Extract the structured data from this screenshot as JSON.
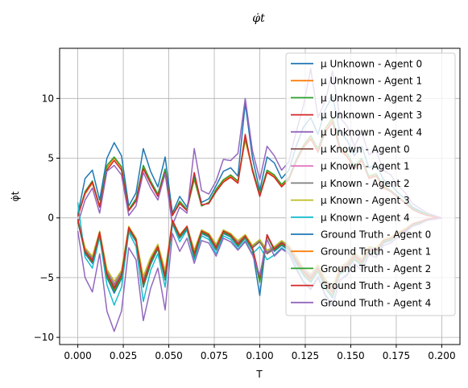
{
  "chart_data": {
    "type": "line",
    "title": "φ̇t",
    "xlabel": "T",
    "ylabel": "φ̇t",
    "xlim": [
      -0.01,
      0.21
    ],
    "ylim": [
      -10.6,
      14.2
    ],
    "xticks": [
      "0.000",
      "0.025",
      "0.050",
      "0.075",
      "0.100",
      "0.125",
      "0.150",
      "0.175",
      "0.200"
    ],
    "xtick_values": [
      0,
      0.025,
      0.05,
      0.075,
      0.1,
      0.125,
      0.15,
      0.175,
      0.2
    ],
    "yticks": [
      "−10",
      "−5",
      "0",
      "5",
      "10"
    ],
    "ytick_values": [
      -10,
      -5,
      0,
      5,
      10
    ],
    "grid": true,
    "legend_position": "top-right",
    "x": [
      0.0,
      0.004,
      0.008,
      0.012,
      0.016,
      0.02,
      0.024,
      0.028,
      0.032,
      0.036,
      0.04,
      0.044,
      0.048,
      0.052,
      0.056,
      0.06,
      0.064,
      0.068,
      0.072,
      0.076,
      0.08,
      0.084,
      0.088,
      0.092,
      0.096,
      0.1,
      0.104,
      0.108,
      0.112,
      0.116,
      0.12,
      0.124,
      0.128,
      0.132,
      0.136,
      0.14,
      0.144,
      0.148,
      0.152,
      0.156,
      0.16,
      0.164,
      0.168,
      0.172,
      0.176,
      0.18,
      0.184,
      0.188,
      0.192,
      0.196,
      0.2
    ],
    "series": [
      {
        "name": "μ Unknown - Agent 0",
        "color": "#1f77b4",
        "values": [
          0.3,
          3.3,
          4.0,
          1.5,
          5.0,
          6.3,
          5.2,
          1.0,
          2.1,
          5.8,
          3.9,
          2.6,
          5.1,
          0.4,
          1.8,
          0.9,
          3.5,
          1.3,
          1.6,
          2.7,
          3.9,
          4.2,
          3.5,
          9.6,
          5.0,
          2.3,
          5.1,
          4.6,
          3.3,
          4.0,
          6.0,
          7.6,
          8.4,
          7.0,
          9.1,
          10.2,
          7.2,
          6.5,
          5.2,
          6.0,
          4.2,
          4.5,
          3.2,
          2.8,
          2.1,
          1.6,
          0.9,
          0.6,
          0.3,
          0.1,
          0.0
        ]
      },
      {
        "name": "μ Unknown - Agent 1",
        "color": "#ff7f0e",
        "values": [
          0.2,
          2.0,
          2.9,
          0.9,
          4.2,
          5.0,
          4.2,
          0.6,
          1.5,
          4.3,
          3.0,
          1.9,
          4.0,
          0.2,
          1.3,
          0.7,
          3.2,
          1.0,
          1.3,
          2.3,
          3.1,
          3.5,
          3.0,
          6.5,
          4.0,
          1.9,
          3.9,
          3.5,
          2.7,
          3.3,
          4.8,
          6.0,
          6.7,
          5.6,
          7.3,
          8.2,
          5.8,
          5.2,
          4.2,
          4.9,
          3.4,
          3.6,
          2.6,
          2.3,
          1.7,
          1.3,
          0.7,
          0.5,
          0.2,
          0.1,
          0.0
        ]
      },
      {
        "name": "μ Unknown - Agent 2",
        "color": "#2ca02c",
        "values": [
          0.2,
          2.2,
          3.1,
          1.0,
          4.4,
          5.1,
          4.3,
          0.7,
          1.6,
          4.4,
          3.1,
          2.0,
          4.1,
          0.2,
          1.4,
          0.7,
          3.3,
          1.0,
          1.3,
          2.4,
          3.2,
          3.6,
          3.1,
          6.7,
          4.1,
          2.0,
          4.0,
          3.6,
          2.8,
          3.4,
          4.9,
          6.1,
          6.9,
          5.8,
          7.5,
          8.4,
          6.0,
          5.4,
          4.3,
          5.0,
          3.5,
          3.7,
          2.7,
          2.3,
          1.8,
          1.3,
          0.8,
          0.5,
          0.3,
          0.1,
          0.0
        ]
      },
      {
        "name": "μ Unknown - Agent 3",
        "color": "#d62728",
        "values": [
          0.1,
          2.1,
          3.0,
          0.9,
          4.0,
          4.8,
          4.0,
          0.6,
          1.4,
          4.1,
          2.9,
          1.8,
          3.8,
          0.2,
          1.2,
          0.6,
          3.8,
          1.1,
          1.2,
          2.2,
          3.0,
          3.4,
          2.9,
          7.0,
          3.9,
          1.8,
          3.8,
          3.4,
          2.6,
          3.2,
          4.7,
          5.9,
          6.6,
          5.5,
          7.2,
          8.0,
          5.7,
          5.1,
          4.1,
          4.8,
          3.3,
          3.5,
          2.5,
          2.2,
          1.7,
          1.2,
          0.7,
          0.4,
          0.2,
          0.1,
          0.0
        ]
      },
      {
        "name": "μ Unknown - Agent 4",
        "color": "#9467bd",
        "values": [
          -0.5,
          1.5,
          2.5,
          0.4,
          3.9,
          4.4,
          3.6,
          0.2,
          1.0,
          3.8,
          2.5,
          1.5,
          3.7,
          -0.6,
          0.9,
          0.4,
          5.8,
          2.3,
          2.0,
          3.1,
          4.9,
          4.8,
          5.4,
          10.0,
          5.6,
          3.2,
          6.0,
          5.2,
          4.0,
          4.7,
          7.2,
          9.4,
          12.5,
          8.4,
          9.8,
          12.3,
          8.4,
          7.7,
          6.0,
          7.2,
          5.3,
          5.6,
          4.0,
          3.6,
          2.7,
          2.1,
          1.2,
          0.8,
          0.4,
          0.2,
          0.0
        ]
      },
      {
        "name": "μ Known - Agent 0",
        "color": "#8c564b",
        "values": [
          -0.3,
          -2.8,
          -3.5,
          -1.3,
          -4.7,
          -5.8,
          -4.8,
          -0.9,
          -1.9,
          -5.4,
          -3.6,
          -2.4,
          -4.8,
          -0.3,
          -1.6,
          -0.8,
          -3.0,
          -1.2,
          -1.5,
          -2.5,
          -1.2,
          -1.5,
          -2.2,
          -1.6,
          -2.5,
          -2.0,
          -3.0,
          -2.6,
          -2.1,
          -2.5,
          -3.5,
          -4.5,
          -5.0,
          -4.2,
          -5.5,
          -6.2,
          -4.4,
          -4.0,
          -3.2,
          -3.7,
          -2.6,
          -2.8,
          -2.0,
          -1.8,
          -1.3,
          -1.0,
          -0.6,
          -0.4,
          -0.2,
          -0.1,
          0.0
        ]
      },
      {
        "name": "μ Known - Agent 1",
        "color": "#e377c2",
        "values": [
          -0.2,
          -2.6,
          -3.3,
          -1.2,
          -4.4,
          -5.5,
          -4.5,
          -0.8,
          -1.8,
          -5.1,
          -3.4,
          -2.3,
          -4.5,
          -0.3,
          -1.5,
          -0.7,
          -2.8,
          -1.1,
          -1.4,
          -2.3,
          -1.1,
          -1.4,
          -2.0,
          -1.5,
          -2.4,
          -1.9,
          -2.8,
          -2.5,
          -2.0,
          -2.4,
          -3.3,
          -4.3,
          -4.8,
          -4.0,
          -5.2,
          -5.9,
          -4.2,
          -3.8,
          -3.0,
          -3.5,
          -2.5,
          -2.6,
          -1.9,
          -1.7,
          -1.2,
          -0.9,
          -0.5,
          -0.3,
          -0.2,
          -0.1,
          0.0
        ]
      },
      {
        "name": "μ Known - Agent 2",
        "color": "#7f7f7f",
        "values": [
          -0.2,
          -2.7,
          -3.4,
          -1.2,
          -4.5,
          -5.6,
          -4.6,
          -0.8,
          -1.8,
          -5.2,
          -3.5,
          -2.3,
          -4.6,
          -0.3,
          -1.5,
          -0.8,
          -2.9,
          -1.1,
          -1.4,
          -2.4,
          -1.1,
          -1.4,
          -2.1,
          -1.5,
          -2.4,
          -1.9,
          -2.9,
          -2.5,
          -2.0,
          -2.4,
          -3.4,
          -4.4,
          -4.9,
          -4.1,
          -5.3,
          -6.0,
          -4.3,
          -3.9,
          -3.1,
          -3.6,
          -2.5,
          -2.7,
          -1.9,
          -1.7,
          -1.3,
          -0.9,
          -0.6,
          -0.4,
          -0.2,
          -0.1,
          0.0
        ]
      },
      {
        "name": "μ Known - Agent 3",
        "color": "#bcbd22",
        "values": [
          -0.1,
          -2.5,
          -3.2,
          -1.1,
          -4.3,
          -5.3,
          -4.4,
          -0.7,
          -1.7,
          -4.9,
          -3.3,
          -2.2,
          -4.4,
          -0.2,
          -1.4,
          -0.7,
          -2.7,
          -1.0,
          -1.3,
          -2.2,
          -1.0,
          -1.3,
          -1.9,
          -1.4,
          -2.3,
          -1.8,
          -2.7,
          -2.4,
          -1.9,
          -2.3,
          -3.2,
          -4.2,
          -4.7,
          -3.9,
          -5.1,
          -5.8,
          -4.1,
          -3.7,
          -2.9,
          -3.4,
          -2.4,
          -2.5,
          -1.8,
          -1.6,
          -1.2,
          -0.9,
          -0.5,
          -0.3,
          -0.1,
          0.0,
          0.0
        ]
      },
      {
        "name": "μ Known - Agent 4",
        "color": "#17becf",
        "values": [
          1.3,
          -3.3,
          -4.2,
          -1.6,
          -5.6,
          -7.3,
          -5.8,
          -1.2,
          -2.4,
          -7.0,
          -4.4,
          -3.0,
          -5.8,
          -0.5,
          -2.0,
          -1.0,
          -3.5,
          -1.5,
          -1.8,
          -3.0,
          -1.5,
          -1.8,
          -2.6,
          -1.9,
          -3.0,
          -2.4,
          -3.5,
          -3.1,
          -2.5,
          -2.9,
          -4.1,
          -5.3,
          -5.9,
          -4.9,
          -6.4,
          -7.3,
          -5.2,
          -4.7,
          -3.8,
          -4.4,
          -3.1,
          -3.3,
          -2.3,
          -2.1,
          -1.6,
          -1.2,
          -0.7,
          -0.5,
          -0.2,
          -0.1,
          0.0
        ]
      },
      {
        "name": "Ground Truth - Agent 0",
        "color": "#1f77b4",
        "values": [
          -0.3,
          -3.0,
          -3.8,
          -1.4,
          -5.0,
          -6.3,
          -5.1,
          -1.0,
          -2.0,
          -5.8,
          -3.9,
          -2.6,
          -5.2,
          -0.4,
          -1.7,
          -0.9,
          -3.3,
          -1.3,
          -1.6,
          -2.7,
          -1.3,
          -1.6,
          -2.4,
          -1.7,
          -2.7,
          -6.5,
          -1.4,
          -2.8,
          -2.3,
          -2.7,
          -3.8,
          -4.8,
          -5.4,
          -4.5,
          -5.9,
          -6.7,
          -4.7,
          -4.3,
          -3.5,
          -4.0,
          -2.8,
          -3.0,
          -2.1,
          -1.9,
          -1.4,
          -1.1,
          -0.6,
          -0.4,
          -0.2,
          -0.1,
          0.0
        ]
      },
      {
        "name": "Ground Truth - Agent 1",
        "color": "#ff7f0e",
        "values": [
          -0.2,
          -2.9,
          -3.6,
          -1.3,
          -4.8,
          -6.0,
          -4.9,
          -0.9,
          -1.9,
          -5.6,
          -3.7,
          -2.5,
          -5.0,
          -0.3,
          -1.6,
          -0.8,
          -3.1,
          -1.2,
          -1.5,
          -2.6,
          -1.2,
          -1.5,
          -2.3,
          -1.6,
          -2.6,
          -5.2,
          -1.5,
          -2.7,
          -2.2,
          -2.6,
          -3.7,
          -4.6,
          -5.2,
          -4.3,
          -5.7,
          -6.4,
          -4.5,
          -4.1,
          -3.3,
          -3.8,
          -2.7,
          -2.9,
          -2.0,
          -1.8,
          -1.4,
          -1.0,
          -0.6,
          -0.4,
          -0.2,
          -0.1,
          0.0
        ]
      },
      {
        "name": "Ground Truth - Agent 2",
        "color": "#2ca02c",
        "values": [
          -0.2,
          -2.9,
          -3.7,
          -1.3,
          -4.9,
          -6.1,
          -5.0,
          -0.9,
          -1.9,
          -5.7,
          -3.8,
          -2.5,
          -5.1,
          -0.3,
          -1.6,
          -0.8,
          -3.2,
          -1.2,
          -1.5,
          -2.6,
          -1.2,
          -1.5,
          -2.3,
          -1.6,
          -2.6,
          -5.4,
          -1.5,
          -2.7,
          -2.2,
          -2.6,
          -3.7,
          -4.7,
          -5.3,
          -4.4,
          -5.8,
          -6.5,
          -4.6,
          -4.2,
          -3.4,
          -3.9,
          -2.7,
          -2.9,
          -2.0,
          -1.8,
          -1.4,
          -1.0,
          -0.6,
          -0.4,
          -0.2,
          -0.1,
          0.0
        ]
      },
      {
        "name": "Ground Truth - Agent 3",
        "color": "#d62728",
        "values": [
          -0.1,
          -2.8,
          -3.6,
          -1.2,
          -4.7,
          -5.9,
          -4.8,
          -0.8,
          -1.8,
          -5.5,
          -3.6,
          -2.4,
          -4.9,
          -0.2,
          -1.5,
          -0.7,
          -3.0,
          -1.1,
          -1.4,
          -2.5,
          -1.1,
          -1.4,
          -2.2,
          -1.5,
          -2.5,
          -5.0,
          -1.4,
          -2.6,
          -2.1,
          -2.5,
          -3.6,
          -4.5,
          -5.1,
          -4.2,
          -5.5,
          -6.2,
          -4.4,
          -4.0,
          -3.2,
          -3.7,
          -2.6,
          -2.8,
          -1.9,
          -1.7,
          -1.3,
          -1.0,
          -0.5,
          -0.3,
          -0.1,
          0.0,
          0.0
        ]
      },
      {
        "name": "Ground Truth - Agent 4",
        "color": "#9467bd",
        "values": [
          -1.1,
          -5.0,
          -6.2,
          -3.0,
          -7.8,
          -9.5,
          -7.8,
          -2.5,
          -3.5,
          -8.6,
          -5.9,
          -4.2,
          -7.7,
          -1.3,
          -2.8,
          -1.7,
          -3.8,
          -1.9,
          -2.1,
          -3.2,
          -1.7,
          -2.0,
          -2.7,
          -2.0,
          -3.1,
          -4.8,
          -1.8,
          -3.2,
          -2.6,
          -3.0,
          -4.3,
          -5.4,
          -6.0,
          -5.0,
          -6.5,
          -7.4,
          -5.2,
          -4.8,
          -3.8,
          -4.4,
          -3.1,
          -3.3,
          -2.3,
          -2.1,
          -1.6,
          -1.2,
          -0.7,
          -0.5,
          -0.2,
          -0.1,
          0.0
        ]
      }
    ]
  }
}
